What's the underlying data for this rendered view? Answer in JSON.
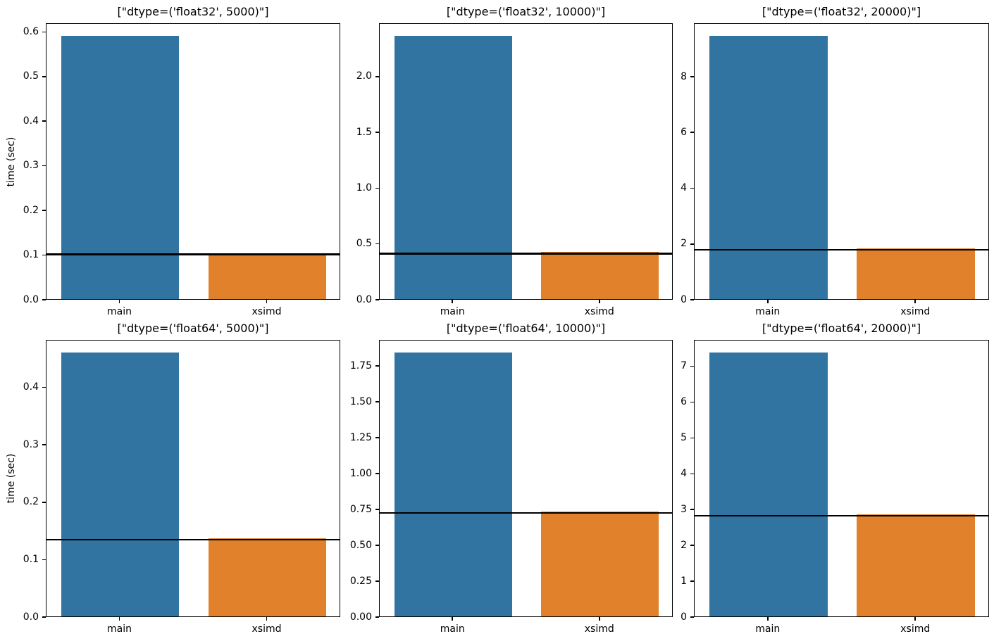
{
  "figure": {
    "background": "#ffffff",
    "categories_note": "benchmark comparison bar charts, main vs xsimd"
  },
  "colors": {
    "bar_main": "#3274a1",
    "bar_xsimd": "#e1812c",
    "reference_line": "#000000",
    "spine": "#000000",
    "text": "#000000"
  },
  "chart_data": [
    {
      "type": "bar",
      "title": "[\"dtype=('float32', 5000)\"]",
      "categories": [
        "main",
        "xsimd"
      ],
      "values": [
        0.59,
        0.103
      ],
      "hline": 0.103,
      "ylabel": "time (sec)",
      "xlabel": "",
      "ylim": [
        0,
        0.6195
      ],
      "yticks": [
        0.0,
        0.1,
        0.2,
        0.3,
        0.4,
        0.5,
        0.6
      ],
      "ytick_labels": [
        "0.0",
        "0.1",
        "0.2",
        "0.3",
        "0.4",
        "0.5",
        "0.6"
      ],
      "grid": false,
      "legend": "none"
    },
    {
      "type": "bar",
      "title": "[\"dtype=('float32', 10000)\"]",
      "categories": [
        "main",
        "xsimd"
      ],
      "values": [
        2.36,
        0.42
      ],
      "hline": 0.42,
      "ylabel": "",
      "xlabel": "",
      "ylim": [
        0,
        2.478
      ],
      "yticks": [
        0.0,
        0.5,
        1.0,
        1.5,
        2.0
      ],
      "ytick_labels": [
        "0.0",
        "0.5",
        "1.0",
        "1.5",
        "2.0"
      ],
      "grid": false,
      "legend": "none"
    },
    {
      "type": "bar",
      "title": "[\"dtype=('float32', 20000)\"]",
      "categories": [
        "main",
        "xsimd"
      ],
      "values": [
        9.45,
        1.82
      ],
      "hline": 1.82,
      "ylabel": "",
      "xlabel": "",
      "ylim": [
        0,
        9.92
      ],
      "yticks": [
        0,
        2,
        4,
        6,
        8
      ],
      "ytick_labels": [
        "0",
        "2",
        "4",
        "6",
        "8"
      ],
      "grid": false,
      "legend": "none"
    },
    {
      "type": "bar",
      "title": "[\"dtype=('float64', 5000)\"]",
      "categories": [
        "main",
        "xsimd"
      ],
      "values": [
        0.46,
        0.136
      ],
      "hline": 0.136,
      "ylabel": "time (sec)",
      "xlabel": "",
      "ylim": [
        0,
        0.483
      ],
      "yticks": [
        0.0,
        0.1,
        0.2,
        0.3,
        0.4
      ],
      "ytick_labels": [
        "0.0",
        "0.1",
        "0.2",
        "0.3",
        "0.4"
      ],
      "grid": false,
      "legend": "none"
    },
    {
      "type": "bar",
      "title": "[\"dtype=('float64', 10000)\"]",
      "categories": [
        "main",
        "xsimd"
      ],
      "values": [
        1.84,
        0.73
      ],
      "hline": 0.73,
      "ylabel": "",
      "xlabel": "",
      "ylim": [
        0,
        1.932
      ],
      "yticks": [
        0.0,
        0.25,
        0.5,
        0.75,
        1.0,
        1.25,
        1.5,
        1.75
      ],
      "ytick_labels": [
        "0.00",
        "0.25",
        "0.50",
        "0.75",
        "1.00",
        "1.25",
        "1.50",
        "1.75"
      ],
      "grid": false,
      "legend": "none"
    },
    {
      "type": "bar",
      "title": "[\"dtype=('float64', 20000)\"]",
      "categories": [
        "main",
        "xsimd"
      ],
      "values": [
        7.37,
        2.85
      ],
      "hline": 2.85,
      "ylabel": "",
      "xlabel": "",
      "ylim": [
        0,
        7.74
      ],
      "yticks": [
        0,
        1,
        2,
        3,
        4,
        5,
        6,
        7
      ],
      "ytick_labels": [
        "0",
        "1",
        "2",
        "3",
        "4",
        "5",
        "6",
        "7"
      ],
      "grid": false,
      "legend": "none"
    }
  ]
}
